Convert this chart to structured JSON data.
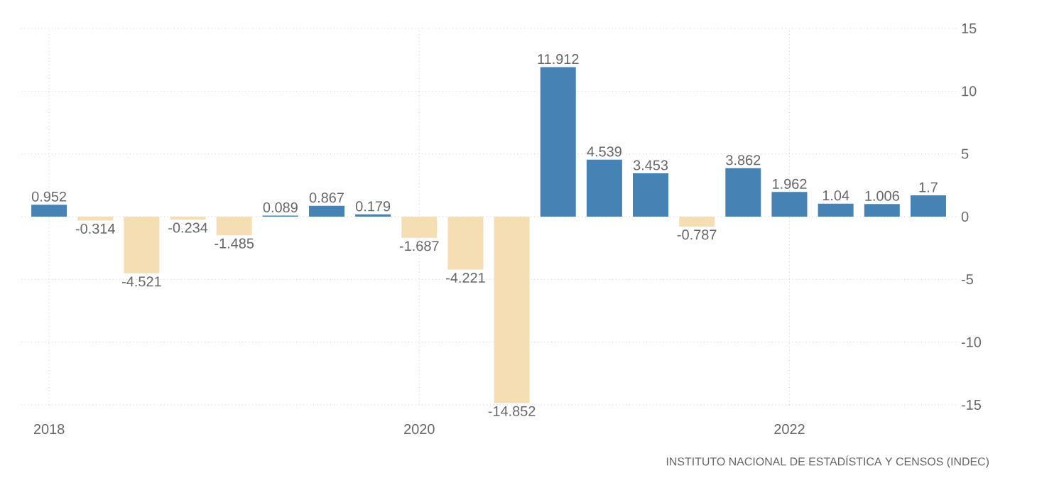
{
  "chart_data": {
    "type": "bar",
    "categories": [
      "2018",
      null,
      null,
      null,
      null,
      null,
      null,
      null,
      "2020",
      null,
      null,
      null,
      null,
      null,
      null,
      null,
      "2022",
      null,
      null,
      null
    ],
    "values": [
      0.952,
      -0.314,
      -4.521,
      -0.234,
      -1.485,
      0.089,
      0.867,
      0.179,
      -1.687,
      -4.221,
      -14.852,
      11.912,
      4.539,
      3.453,
      -0.787,
      3.862,
      1.962,
      1.04,
      1.006,
      1.7
    ],
    "colors": [
      "#4682b4",
      "#f5deb3",
      "#f5deb3",
      "#f5deb3",
      "#f5deb3",
      "#4682b4",
      "#4682b4",
      "#4682b4",
      "#f5deb3",
      "#f5deb3",
      "#f5deb3",
      "#4682b4",
      "#4682b4",
      "#4682b4",
      "#f5deb3",
      "#4682b4",
      "#4682b4",
      "#4682b4",
      "#4682b4",
      "#4682b4"
    ],
    "ylim": [
      -15,
      15
    ],
    "yticks": [
      -15,
      -10,
      -5,
      0,
      5,
      10,
      15
    ],
    "grid": true,
    "data_labels": true,
    "annotations": [
      "INSTITUTO NACIONAL DE ESTADÍSTICA Y CENSOS (INDEC)"
    ]
  }
}
